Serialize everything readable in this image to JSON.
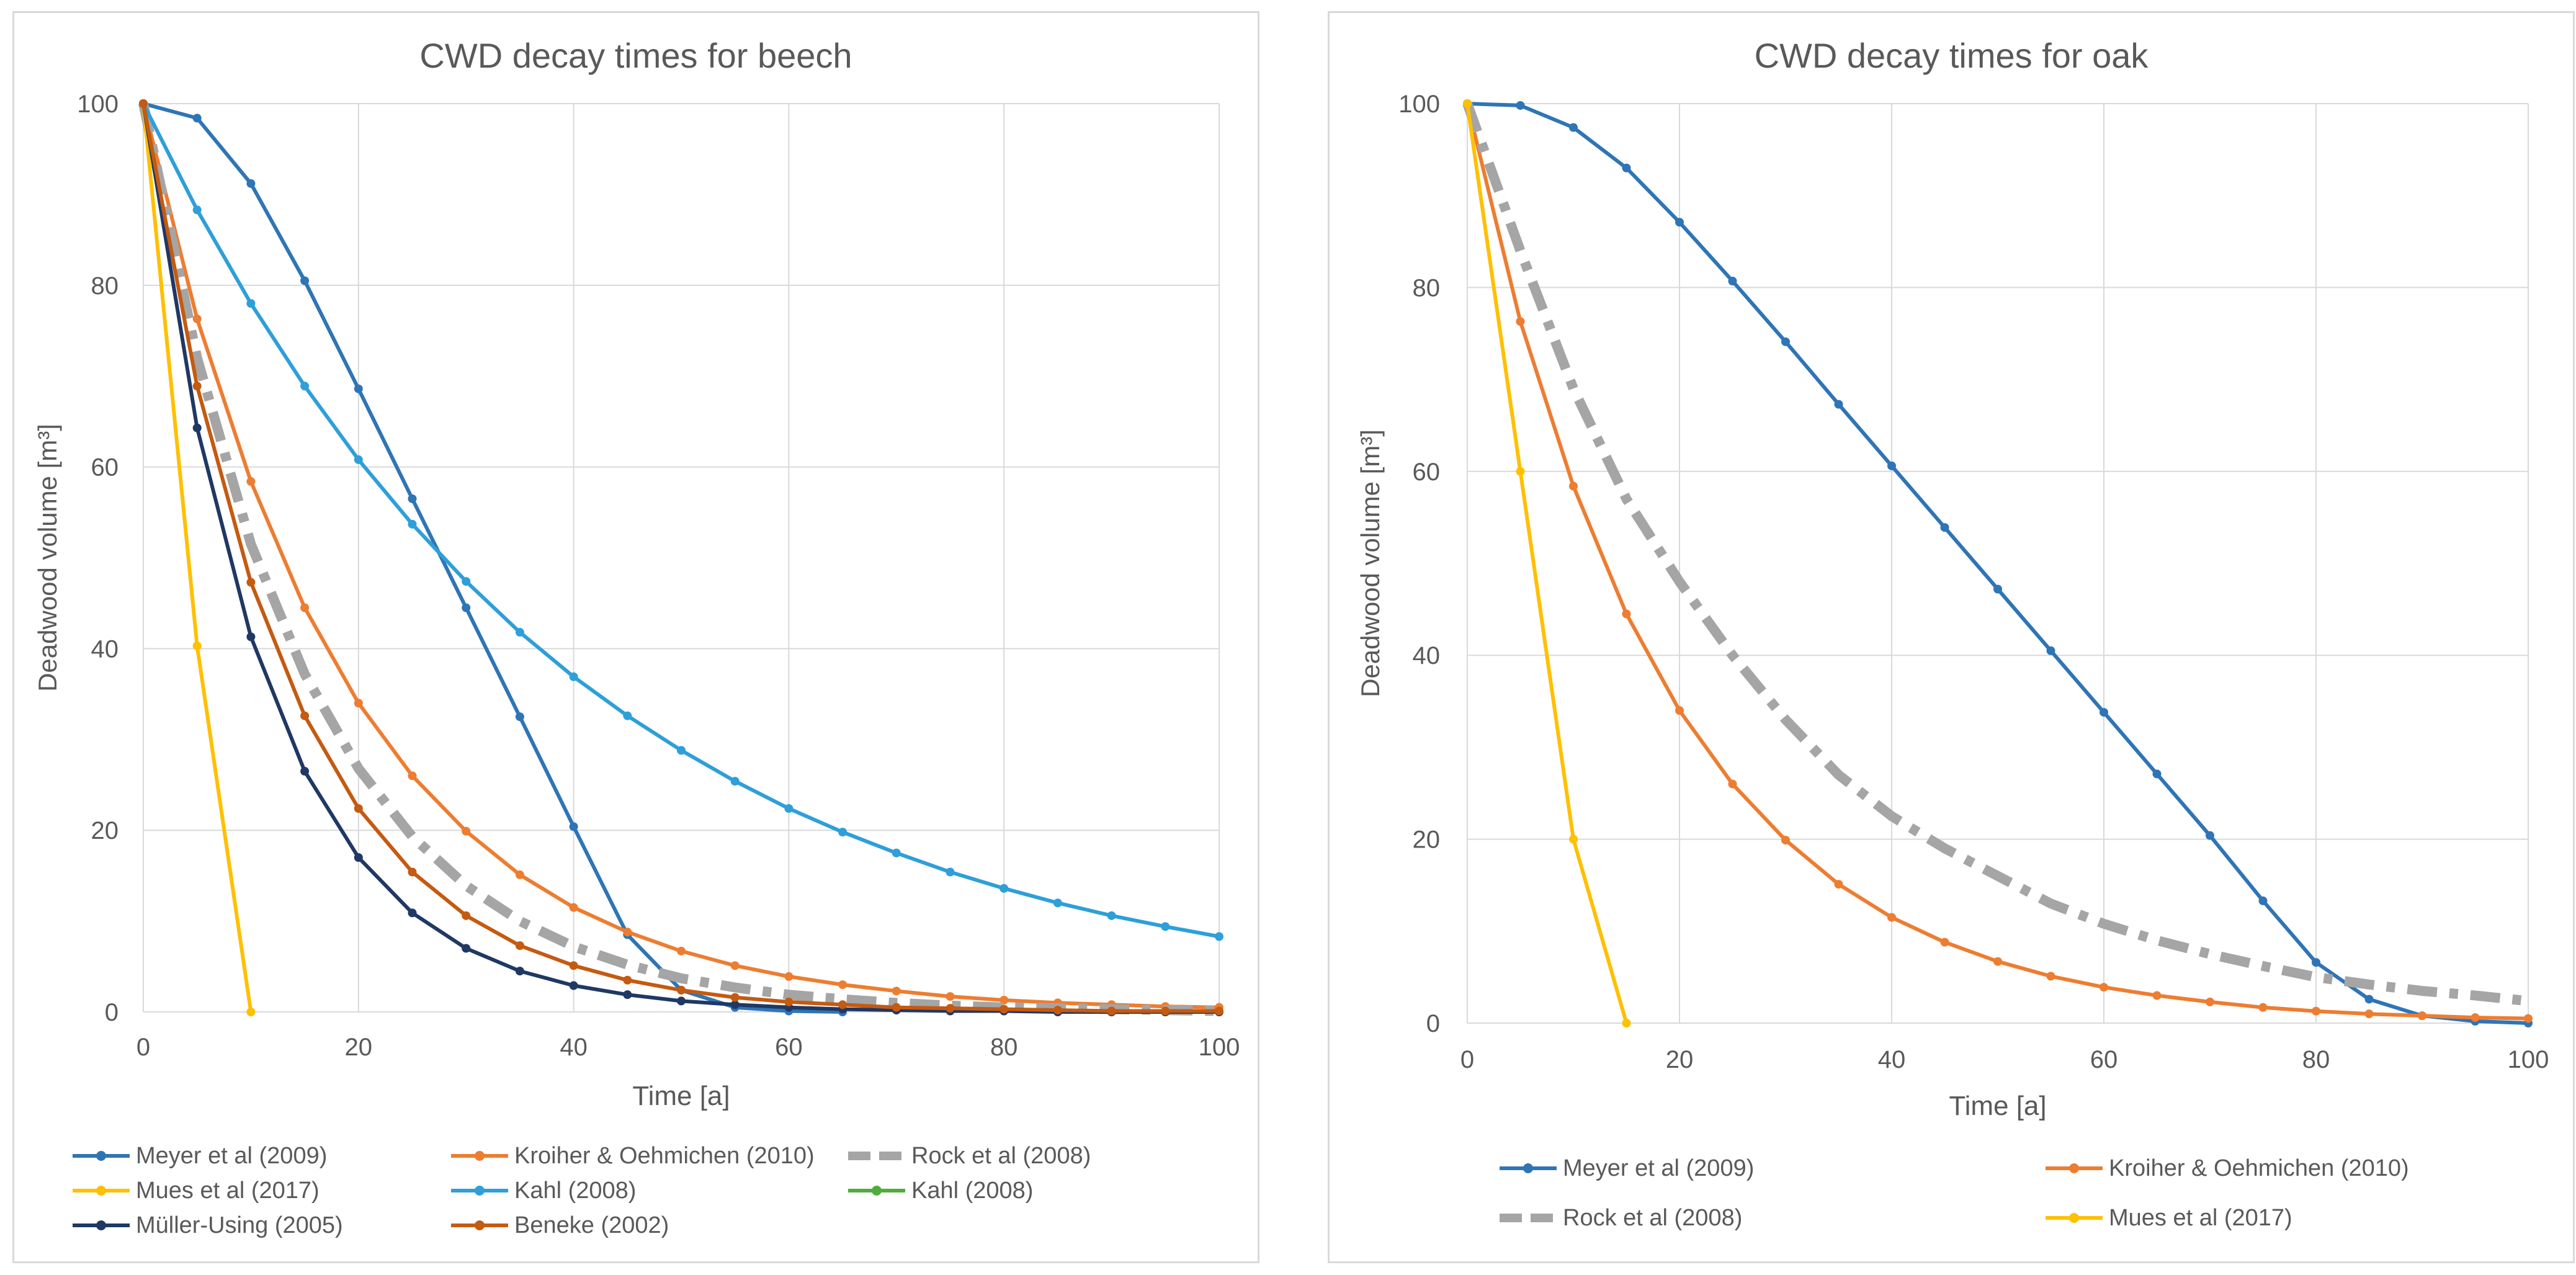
{
  "charts": {
    "beech": {
      "title": "CWD decay times for beech",
      "xlabel": "Time [a]",
      "ylabel": "Deadwood volume [m³]",
      "x_ticks": [
        "0",
        "20",
        "40",
        "60",
        "80",
        "100"
      ],
      "y_ticks": [
        "0",
        "20",
        "40",
        "60",
        "80",
        "100"
      ]
    },
    "oak": {
      "title": "CWD decay times for oak",
      "xlabel": "Time [a]",
      "ylabel": "Deadwood volume [m³]",
      "x_ticks": [
        "0",
        "20",
        "40",
        "60",
        "80",
        "100"
      ],
      "y_ticks": [
        "0",
        "20",
        "40",
        "60",
        "80",
        "100"
      ]
    }
  },
  "chart_data": [
    {
      "type": "line",
      "title": "CWD decay times for beech",
      "xlabel": "Time [a]",
      "ylabel": "Deadwood volume [m³]",
      "xlim": [
        0,
        100
      ],
      "ylim": [
        0,
        100
      ],
      "grid": true,
      "legend": "bottom",
      "series": [
        {
          "name": "Meyer et al (2009)",
          "color": "#2e75b6",
          "style": "solid-marker",
          "x": [
            0,
            5,
            10,
            15,
            20,
            25,
            30,
            35,
            40,
            45,
            50,
            55,
            60,
            65
          ],
          "y": [
            100,
            98.4,
            91.2,
            80.5,
            68.6,
            56.5,
            44.5,
            32.5,
            20.4,
            8.5,
            2.4,
            0.5,
            0.1,
            0
          ]
        },
        {
          "name": "Kroiher & Oehmichen (2010)",
          "color": "#ed7d31",
          "style": "solid-marker",
          "x": [
            0,
            5,
            10,
            15,
            20,
            25,
            30,
            35,
            40,
            45,
            50,
            55,
            60,
            65,
            70,
            75,
            80,
            85,
            90,
            95,
            100
          ],
          "y": [
            100,
            76.3,
            58.4,
            44.5,
            34,
            26,
            19.9,
            15.1,
            11.5,
            8.8,
            6.7,
            5.1,
            3.9,
            3,
            2.3,
            1.7,
            1.3,
            1,
            0.8,
            0.6,
            0.5
          ]
        },
        {
          "name": "Rock et al (2008)",
          "color": "#a5a5a5",
          "style": "dashdot",
          "x": [
            0,
            5,
            10,
            15,
            20,
            25,
            30,
            35,
            40,
            45,
            50,
            55,
            60,
            65,
            70,
            75,
            80,
            85,
            90,
            95,
            100
          ],
          "y": [
            100,
            72,
            51.5,
            37.2,
            26.8,
            19.3,
            13.9,
            10,
            7.2,
            5.2,
            3.7,
            2.7,
            1.9,
            1.4,
            1,
            0.7,
            0.5,
            0.4,
            0.3,
            0.2,
            0.1
          ]
        },
        {
          "name": "Mues et al (2017)",
          "color": "#ffc000",
          "style": "solid-marker",
          "x": [
            0,
            5,
            10
          ],
          "y": [
            100,
            40.3,
            0
          ]
        },
        {
          "name": "Kahl (2008)",
          "color": "#2e9fd9",
          "style": "solid-marker",
          "x": [
            0,
            5,
            10,
            15,
            20,
            25,
            30,
            35,
            40,
            45,
            50,
            55,
            60,
            65,
            70,
            75,
            80,
            85,
            90,
            95,
            100
          ],
          "y": [
            100,
            88.3,
            78,
            68.9,
            60.8,
            53.7,
            47.4,
            41.8,
            36.9,
            32.6,
            28.8,
            25.4,
            22.4,
            19.8,
            17.5,
            15.4,
            13.6,
            12,
            10.6,
            9.4,
            8.3
          ]
        },
        {
          "name": "Kahl (2008)",
          "color": "#4ead3c",
          "style": "solid-marker",
          "x": [],
          "y": []
        },
        {
          "name": "Müller-Using (2005)",
          "color": "#1f3864",
          "style": "solid-marker",
          "x": [
            0,
            5,
            10,
            15,
            20,
            25,
            30,
            35,
            40,
            45,
            50,
            55,
            60,
            65,
            70,
            75,
            80,
            85,
            90,
            95,
            100
          ],
          "y": [
            100,
            64.3,
            41.3,
            26.5,
            17,
            10.9,
            7,
            4.5,
            2.9,
            1.9,
            1.2,
            0.8,
            0.5,
            0.3,
            0.2,
            0.1,
            0.1,
            0,
            0,
            0,
            0
          ]
        },
        {
          "name": "Beneke (2002)",
          "color": "#c55a11",
          "style": "solid-marker",
          "x": [
            0,
            5,
            10,
            15,
            20,
            25,
            30,
            35,
            40,
            45,
            50,
            55,
            60,
            65,
            70,
            75,
            80,
            85,
            90,
            95,
            100
          ],
          "y": [
            100,
            68.9,
            47.3,
            32.6,
            22.4,
            15.4,
            10.6,
            7.3,
            5.1,
            3.5,
            2.4,
            1.6,
            1.1,
            0.8,
            0.5,
            0.4,
            0.3,
            0.2,
            0.1,
            0.1,
            0.1
          ]
        }
      ]
    },
    {
      "type": "line",
      "title": "CWD decay times for oak",
      "xlabel": "Time [a]",
      "ylabel": "Deadwood volume [m³]",
      "xlim": [
        0,
        100
      ],
      "ylim": [
        0,
        100
      ],
      "grid": true,
      "legend": "bottom",
      "series": [
        {
          "name": "Meyer et al (2009)",
          "color": "#2e75b6",
          "style": "solid-marker",
          "x": [
            0,
            5,
            10,
            15,
            20,
            25,
            30,
            35,
            40,
            45,
            50,
            55,
            60,
            65,
            70,
            75,
            80,
            85,
            90,
            95,
            100
          ],
          "y": [
            100,
            99.8,
            97.4,
            93,
            87.1,
            80.7,
            74.1,
            67.3,
            60.6,
            53.9,
            47.2,
            40.5,
            33.8,
            27.1,
            20.4,
            13.3,
            6.6,
            2.6,
            0.8,
            0.2,
            0
          ]
        },
        {
          "name": "Kroiher & Oehmichen (2010)",
          "color": "#ed7d31",
          "style": "solid-marker",
          "x": [
            0,
            5,
            10,
            15,
            20,
            25,
            30,
            35,
            40,
            45,
            50,
            55,
            60,
            65,
            70,
            75,
            80,
            85,
            90,
            95,
            100
          ],
          "y": [
            100,
            76.3,
            58.4,
            44.5,
            34,
            26,
            19.9,
            15.1,
            11.5,
            8.8,
            6.7,
            5.1,
            3.9,
            3,
            2.3,
            1.7,
            1.3,
            1,
            0.8,
            0.6,
            0.5
          ]
        },
        {
          "name": "Rock et al (2008)",
          "color": "#a5a5a5",
          "style": "dashdot",
          "x": [
            0,
            5,
            10,
            15,
            20,
            25,
            30,
            35,
            40,
            45,
            50,
            55,
            60,
            65,
            70,
            75,
            80,
            85,
            90,
            95,
            100
          ],
          "y": [
            100,
            84,
            69,
            57,
            48,
            40,
            33,
            27,
            22.5,
            19,
            16,
            13,
            10.8,
            9,
            7.5,
            6.2,
            5,
            4.2,
            3.5,
            3,
            2.4
          ]
        },
        {
          "name": "Mues et al (2017)",
          "color": "#ffc000",
          "style": "solid-marker",
          "x": [
            0,
            5,
            10,
            15
          ],
          "y": [
            100,
            60,
            20,
            0
          ]
        }
      ]
    }
  ]
}
